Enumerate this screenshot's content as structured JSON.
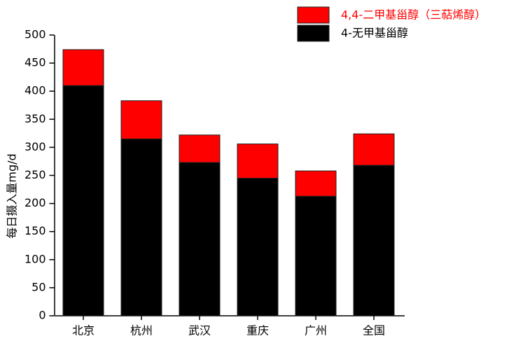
{
  "chart_data": {
    "type": "stacked_bar",
    "y_label": "每日摄入量mg/d",
    "categories": [
      "北京",
      "杭州",
      "武汉",
      "重庆",
      "广州",
      "全国"
    ],
    "series": [
      {
        "name": "4-无甲基甾醇",
        "color": "#000000",
        "values": [
          410,
          315,
          273,
          245,
          213,
          268
        ]
      },
      {
        "name": "4,4-二甲基甾醇（三萜烯醇）",
        "color": "#ff0000",
        "values": [
          64,
          68,
          49,
          61,
          45,
          56
        ]
      }
    ],
    "ylim": [
      0,
      500
    ],
    "yticks": [
      0,
      50,
      100,
      150,
      200,
      250,
      300,
      350,
      400,
      450,
      500
    ],
    "grid": false
  }
}
